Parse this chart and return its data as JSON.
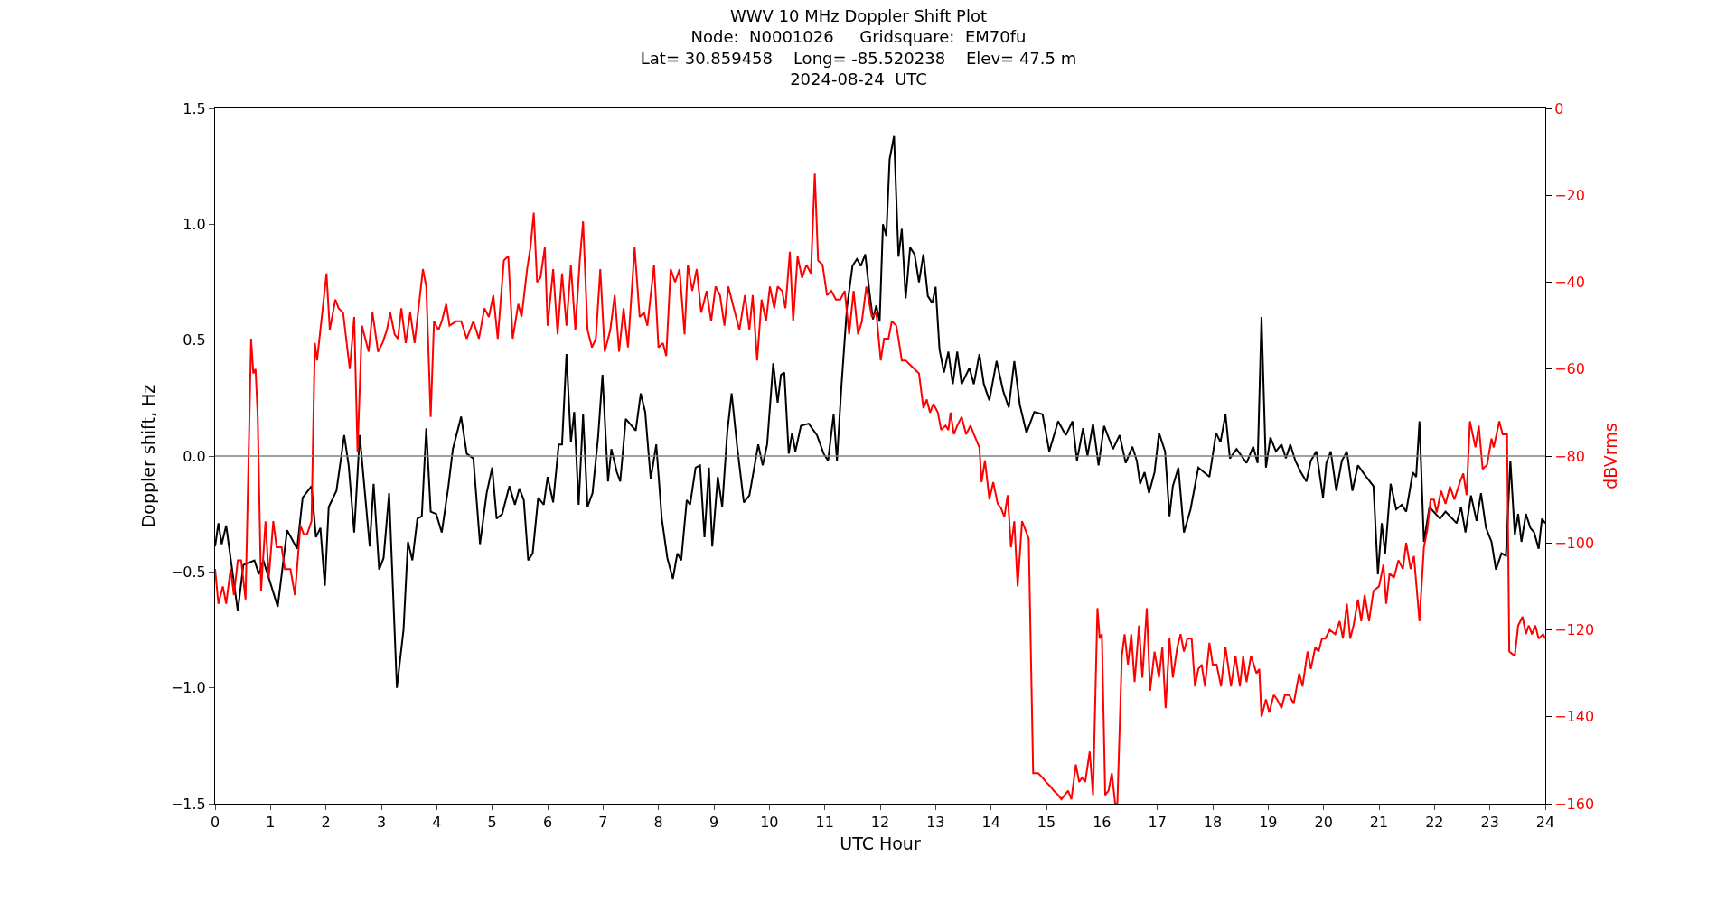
{
  "chart_data": {
    "type": "line",
    "title": "WWV 10 MHz Doppler Shift Plot\nNode:  N0001026     Gridsquare:  EM70fu\nLat= 30.859458    Long= -85.520238    Elev= 47.5 m\n2024-08-24  UTC",
    "xlabel": "UTC Hour",
    "ylabel": "Doppler shift, Hz",
    "y2label": "dBVrms",
    "xlim": [
      0,
      24
    ],
    "xticks": [
      0,
      1,
      2,
      3,
      4,
      5,
      6,
      7,
      8,
      9,
      10,
      11,
      12,
      13,
      14,
      15,
      16,
      17,
      18,
      19,
      20,
      21,
      22,
      23,
      24
    ],
    "ylim": [
      -1.5,
      1.5
    ],
    "yticks": [
      {
        "value": -1.5,
        "label": "−1.5"
      },
      {
        "value": -1,
        "label": "−1.0"
      },
      {
        "value": -0.5,
        "label": "−0.5"
      },
      {
        "value": 0,
        "label": "0.0"
      },
      {
        "value": 0.5,
        "label": "0.5"
      },
      {
        "value": 1,
        "label": "1.0"
      },
      {
        "value": 1.5,
        "label": "1.5"
      }
    ],
    "y2lim": [
      -160,
      0
    ],
    "y2ticks": [
      {
        "value": -160,
        "label": "−160"
      },
      {
        "value": -140,
        "label": "−140"
      },
      {
        "value": -120,
        "label": "−120"
      },
      {
        "value": -100,
        "label": "−100"
      },
      {
        "value": -80,
        "label": "−80"
      },
      {
        "value": -60,
        "label": "−60"
      },
      {
        "value": -40,
        "label": "−40"
      },
      {
        "value": -20,
        "label": "−20"
      },
      0
    ],
    "ref_lines": [
      {
        "axis": "y",
        "value": 0,
        "color": "#808080"
      }
    ],
    "series": [
      {
        "color": "#000000",
        "x": [
          0,
          0.06,
          0.12,
          0.2,
          0.41,
          0.51,
          0.71,
          0.79,
          0.87,
          1.13,
          1.3,
          1.48,
          1.58,
          1.74,
          1.82,
          1.9,
          1.98,
          2.05,
          2.19,
          2.33,
          2.41,
          2.51,
          2.61,
          2.79,
          2.86,
          2.96,
          3.04,
          3.14,
          3.28,
          3.4,
          3.48,
          3.56,
          3.65,
          3.73,
          3.81,
          3.89,
          3.99,
          4.09,
          4.21,
          4.29,
          4.44,
          4.54,
          4.66,
          4.78,
          4.9,
          5,
          5.08,
          5.18,
          5.31,
          5.41,
          5.49,
          5.57,
          5.65,
          5.73,
          5.83,
          5.93,
          6,
          6.1,
          6.2,
          6.26,
          6.34,
          6.42,
          6.48,
          6.56,
          6.64,
          6.72,
          6.81,
          6.91,
          6.99,
          7.09,
          7.15,
          7.25,
          7.31,
          7.41,
          7.59,
          7.68,
          7.76,
          7.86,
          7.96,
          8.06,
          8.16,
          8.26,
          8.34,
          8.41,
          8.51,
          8.57,
          8.67,
          8.75,
          8.83,
          8.91,
          8.97,
          9.07,
          9.15,
          9.24,
          9.32,
          9.42,
          9.54,
          9.64,
          9.8,
          9.88,
          9.96,
          10.07,
          10.15,
          10.21,
          10.27,
          10.35,
          10.41,
          10.47,
          10.57,
          10.71,
          10.86,
          10.98,
          11.06,
          11.16,
          11.22,
          11.3,
          11.4,
          11.5,
          11.58,
          11.65,
          11.73,
          11.81,
          11.87,
          11.93,
          11.99,
          12.05,
          12.11,
          12.17,
          12.25,
          12.33,
          12.39,
          12.46,
          12.54,
          12.62,
          12.7,
          12.78,
          12.86,
          12.94,
          13,
          13.07,
          13.15,
          13.23,
          13.31,
          13.39,
          13.47,
          13.61,
          13.69,
          13.79,
          13.87,
          13.97,
          14.1,
          14.22,
          14.32,
          14.42,
          14.52,
          14.64,
          14.78,
          14.93,
          15.05,
          15.21,
          15.35,
          15.47,
          15.55,
          15.66,
          15.74,
          15.84,
          15.94,
          16.04,
          16.2,
          16.32,
          16.43,
          16.55,
          16.63,
          16.69,
          16.77,
          16.85,
          16.95,
          17.03,
          17.14,
          17.22,
          17.28,
          17.38,
          17.48,
          17.6,
          17.74,
          17.94,
          18.06,
          18.14,
          18.23,
          18.31,
          18.43,
          18.61,
          18.73,
          18.81,
          18.88,
          18.96,
          19.04,
          19.14,
          19.24,
          19.32,
          19.4,
          19.49,
          19.59,
          19.69,
          19.77,
          19.87,
          19.99,
          20.05,
          20.13,
          20.23,
          20.33,
          20.42,
          20.52,
          20.62,
          20.74,
          20.9,
          20.98,
          21.05,
          21.11,
          21.21,
          21.31,
          21.41,
          21.49,
          21.61,
          21.67,
          21.73,
          21.81,
          21.91,
          22.1,
          22.2,
          22.4,
          22.48,
          22.56,
          22.66,
          22.76,
          22.84,
          22.93,
          23.03,
          23.11,
          23.21,
          23.29,
          23.37,
          23.45,
          23.51,
          23.57,
          23.65,
          23.73,
          23.8,
          23.88,
          23.94,
          24
        ],
        "values": [
          -0.39,
          -0.29,
          -0.38,
          -0.3,
          -0.67,
          -0.47,
          -0.45,
          -0.51,
          -0.45,
          -0.65,
          -0.32,
          -0.4,
          -0.18,
          -0.13,
          -0.35,
          -0.31,
          -0.56,
          -0.22,
          -0.15,
          0.09,
          -0.04,
          -0.33,
          0.09,
          -0.39,
          -0.12,
          -0.49,
          -0.44,
          -0.16,
          -1,
          -0.75,
          -0.37,
          -0.45,
          -0.27,
          -0.26,
          0.12,
          -0.24,
          -0.25,
          -0.33,
          -0.13,
          0.03,
          0.17,
          0.01,
          -0.01,
          -0.38,
          -0.16,
          -0.05,
          -0.27,
          -0.25,
          -0.13,
          -0.21,
          -0.14,
          -0.19,
          -0.45,
          -0.42,
          -0.18,
          -0.21,
          -0.09,
          -0.2,
          0.05,
          0.05,
          0.44,
          0.06,
          0.19,
          -0.21,
          0.18,
          -0.22,
          -0.16,
          0.08,
          0.35,
          -0.11,
          0.03,
          -0.07,
          -0.11,
          0.16,
          0.11,
          0.27,
          0.19,
          -0.1,
          0.05,
          -0.27,
          -0.44,
          -0.53,
          -0.42,
          -0.45,
          -0.19,
          -0.21,
          -0.05,
          -0.04,
          -0.35,
          -0.05,
          -0.39,
          -0.09,
          -0.22,
          0.1,
          0.27,
          0.04,
          -0.2,
          -0.17,
          0.05,
          -0.04,
          0.05,
          0.4,
          0.23,
          0.35,
          0.36,
          0.01,
          0.1,
          0.02,
          0.13,
          0.14,
          0.09,
          0.01,
          -0.02,
          0.18,
          -0.02,
          0.3,
          0.64,
          0.82,
          0.85,
          0.82,
          0.87,
          0.7,
          0.59,
          0.65,
          0.58,
          1,
          0.95,
          1.28,
          1.38,
          0.86,
          0.98,
          0.68,
          0.9,
          0.87,
          0.75,
          0.87,
          0.69,
          0.66,
          0.73,
          0.46,
          0.36,
          0.45,
          0.31,
          0.45,
          0.31,
          0.38,
          0.31,
          0.44,
          0.31,
          0.24,
          0.41,
          0.28,
          0.21,
          0.41,
          0.22,
          0.1,
          0.19,
          0.18,
          0.02,
          0.15,
          0.09,
          0.15,
          -0.02,
          0.12,
          0,
          0.14,
          -0.04,
          0.13,
          0.03,
          0.09,
          -0.03,
          0.04,
          -0.02,
          -0.12,
          -0.07,
          -0.16,
          -0.07,
          0.1,
          0.02,
          -0.26,
          -0.13,
          -0.05,
          -0.33,
          -0.23,
          -0.05,
          -0.09,
          0.1,
          0.06,
          0.18,
          -0.01,
          0.03,
          -0.03,
          0.04,
          -0.03,
          0.6,
          -0.05,
          0.08,
          0.02,
          0.05,
          -0.01,
          0.05,
          -0.02,
          -0.07,
          -0.11,
          -0.02,
          0.02,
          -0.18,
          -0.03,
          0.02,
          -0.15,
          -0.02,
          0.02,
          -0.15,
          -0.04,
          -0.08,
          -0.13,
          -0.51,
          -0.29,
          -0.42,
          -0.12,
          -0.23,
          -0.21,
          -0.24,
          -0.07,
          -0.09,
          0.15,
          -0.37,
          -0.22,
          -0.27,
          -0.24,
          -0.29,
          -0.22,
          -0.33,
          -0.17,
          -0.28,
          -0.16,
          -0.31,
          -0.37,
          -0.49,
          -0.42,
          -0.43,
          -0.02,
          -0.34,
          -0.25,
          -0.37,
          -0.25,
          -0.31,
          -0.33,
          -0.4,
          -0.27,
          -0.29
        ]
      },
      {
        "color": "#ff0000",
        "axis": "y2",
        "x": [
          0,
          0.06,
          0.14,
          0.2,
          0.28,
          0.34,
          0.41,
          0.47,
          0.55,
          0.65,
          0.69,
          0.73,
          0.77,
          0.83,
          0.91,
          0.97,
          1.05,
          1.11,
          1.2,
          1.26,
          1.36,
          1.44,
          1.54,
          1.6,
          1.66,
          1.74,
          1.8,
          1.84,
          1.9,
          2.01,
          2.07,
          2.17,
          2.23,
          2.31,
          2.43,
          2.51,
          2.57,
          2.65,
          2.77,
          2.84,
          2.94,
          3.02,
          3.1,
          3.16,
          3.24,
          3.3,
          3.36,
          3.44,
          3.52,
          3.6,
          3.75,
          3.81,
          3.89,
          3.95,
          4.03,
          4.09,
          4.17,
          4.23,
          4.35,
          4.44,
          4.54,
          4.66,
          4.76,
          4.86,
          4.94,
          5.02,
          5.1,
          5.21,
          5.29,
          5.37,
          5.47,
          5.53,
          5.63,
          5.69,
          5.75,
          5.81,
          5.87,
          5.95,
          6,
          6.1,
          6.18,
          6.26,
          6.34,
          6.42,
          6.5,
          6.58,
          6.64,
          6.72,
          6.8,
          6.87,
          6.95,
          7.03,
          7.13,
          7.21,
          7.29,
          7.37,
          7.45,
          7.57,
          7.66,
          7.74,
          7.8,
          7.92,
          8,
          8.08,
          8.14,
          8.22,
          8.3,
          8.38,
          8.47,
          8.53,
          8.61,
          8.69,
          8.77,
          8.87,
          8.95,
          9.03,
          9.11,
          9.19,
          9.26,
          9.36,
          9.46,
          9.56,
          9.64,
          9.7,
          9.78,
          9.86,
          9.94,
          10.01,
          10.09,
          10.15,
          10.23,
          10.29,
          10.37,
          10.43,
          10.51,
          10.59,
          10.67,
          10.75,
          10.82,
          10.88,
          10.96,
          11.04,
          11.12,
          11.2,
          11.28,
          11.36,
          11.44,
          11.52,
          11.6,
          11.67,
          11.75,
          11.85,
          11.93,
          12.01,
          12.07,
          12.15,
          12.21,
          12.29,
          12.33,
          12.39,
          12.46,
          12.54,
          12.62,
          12.7,
          12.78,
          12.84,
          12.9,
          12.96,
          13.04,
          13.1,
          13.18,
          13.23,
          13.27,
          13.33,
          13.39,
          13.47,
          13.55,
          13.63,
          13.69,
          13.79,
          13.83,
          13.89,
          13.97,
          14.04,
          14.12,
          14.18,
          14.24,
          14.3,
          14.36,
          14.42,
          14.48,
          14.56,
          14.68,
          14.76,
          14.85,
          14.93,
          14.99,
          15.07,
          15.13,
          15.21,
          15.27,
          15.33,
          15.39,
          15.45,
          15.53,
          15.59,
          15.64,
          15.7,
          15.78,
          15.84,
          15.92,
          15.96,
          16,
          16.06,
          16.12,
          16.18,
          16.24,
          16.28,
          16.36,
          16.41,
          16.47,
          16.53,
          16.59,
          16.67,
          16.73,
          16.81,
          16.87,
          16.95,
          17.03,
          17.09,
          17.15,
          17.22,
          17.28,
          17.36,
          17.42,
          17.48,
          17.54,
          17.62,
          17.68,
          17.74,
          17.8,
          17.86,
          17.94,
          18,
          18.07,
          18.15,
          18.23,
          18.33,
          18.41,
          18.49,
          18.55,
          18.61,
          18.69,
          18.79,
          18.84,
          18.88,
          18.96,
          19.02,
          19.1,
          19.16,
          19.24,
          19.3,
          19.38,
          19.46,
          19.56,
          19.62,
          19.71,
          19.77,
          19.85,
          19.91,
          19.97,
          20.03,
          20.11,
          20.21,
          20.29,
          20.35,
          20.42,
          20.48,
          20.54,
          20.62,
          20.68,
          20.74,
          20.82,
          20.9,
          21,
          21.08,
          21.13,
          21.19,
          21.27,
          21.35,
          21.43,
          21.49,
          21.57,
          21.63,
          21.73,
          21.81,
          21.87,
          21.93,
          21.99,
          22.04,
          22.12,
          22.2,
          22.28,
          22.36,
          22.46,
          22.52,
          22.58,
          22.64,
          22.74,
          22.8,
          22.87,
          22.95,
          23.03,
          23.07,
          23.17,
          23.23,
          23.31,
          23.35,
          23.45,
          23.51,
          23.59,
          23.65,
          23.7,
          23.76,
          23.82,
          23.88,
          23.96,
          24
        ],
        "values": [
          -106,
          -114,
          -110,
          -114,
          -106,
          -112,
          -104,
          -104,
          -113,
          -53,
          -61,
          -60,
          -71,
          -111,
          -95,
          -108,
          -95,
          -101,
          -101,
          -106,
          -106,
          -112,
          -96,
          -98,
          -98,
          -95,
          -54,
          -58,
          -51,
          -38,
          -51,
          -44,
          -46,
          -47,
          -60,
          -48,
          -79,
          -50,
          -56,
          -47,
          -56,
          -54,
          -51,
          -47,
          -52,
          -53,
          -46,
          -54,
          -47,
          -54,
          -37,
          -41,
          -71,
          -49,
          -51,
          -49,
          -45,
          -50,
          -49,
          -49,
          -53,
          -49,
          -53,
          -46,
          -48,
          -43,
          -53,
          -35,
          -34,
          -53,
          -45,
          -48,
          -37,
          -32,
          -24,
          -40,
          -39,
          -32,
          -50,
          -37,
          -52,
          -38,
          -50,
          -36,
          -51,
          -35,
          -26,
          -51,
          -55,
          -53,
          -37,
          -56,
          -51,
          -43,
          -56,
          -46,
          -55,
          -32,
          -48,
          -47,
          -50,
          -36,
          -55,
          -54,
          -57,
          -37,
          -40,
          -37,
          -52,
          -36,
          -42,
          -37,
          -47,
          -42,
          -49,
          -41,
          -43,
          -50,
          -41,
          -46,
          -51,
          -43,
          -51,
          -43,
          -58,
          -44,
          -49,
          -41,
          -46,
          -41,
          -42,
          -46,
          -33,
          -49,
          -34,
          -39,
          -36,
          -38,
          -15,
          -35,
          -36,
          -43,
          -42,
          -44,
          -44,
          -42,
          -52,
          -42,
          -52,
          -49,
          -41,
          -48,
          -47,
          -58,
          -53,
          -53,
          -49,
          -50,
          -53,
          -58,
          -58,
          -59,
          -60,
          -61,
          -69,
          -67,
          -70,
          -68,
          -70,
          -74,
          -73,
          -74,
          -70,
          -75,
          -73,
          -71,
          -75,
          -73,
          -75,
          -78,
          -86,
          -81,
          -90,
          -86,
          -91,
          -92,
          -94,
          -89,
          -101,
          -95,
          -110,
          -95,
          -99,
          -153,
          -153,
          -154,
          -155,
          -156,
          -157,
          -158,
          -159,
          -158,
          -157,
          -159,
          -151,
          -155,
          -154,
          -155,
          -148,
          -158,
          -115,
          -122,
          -121,
          -158,
          -157,
          -153,
          -160,
          -160,
          -126,
          -121,
          -128,
          -121,
          -132,
          -119,
          -131,
          -115,
          -134,
          -125,
          -131,
          -124,
          -138,
          -122,
          -131,
          -124,
          -121,
          -125,
          -122,
          -122,
          -133,
          -129,
          -128,
          -133,
          -123,
          -128,
          -128,
          -133,
          -124,
          -133,
          -126,
          -133,
          -126,
          -132,
          -126,
          -130,
          -129,
          -140,
          -136,
          -139,
          -135,
          -136,
          -138,
          -135,
          -135,
          -137,
          -130,
          -133,
          -125,
          -129,
          -124,
          -125,
          -122,
          -122,
          -120,
          -121,
          -118,
          -122,
          -114,
          -122,
          -119,
          -113,
          -118,
          -112,
          -118,
          -111,
          -110,
          -105,
          -114,
          -107,
          -108,
          -104,
          -106,
          -100,
          -106,
          -103,
          -118,
          -101,
          -97,
          -90,
          -90,
          -93,
          -88,
          -91,
          -87,
          -90,
          -86,
          -84,
          -89,
          -72,
          -78,
          -73,
          -83,
          -82,
          -76,
          -78,
          -72,
          -75,
          -75,
          -125,
          -126,
          -119,
          -117,
          -121,
          -119,
          -121,
          -119,
          -122,
          -121,
          -122
        ]
      }
    ]
  }
}
